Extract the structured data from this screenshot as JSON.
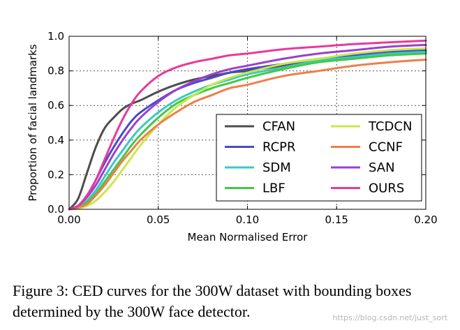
{
  "chart_data": {
    "type": "line",
    "title": "",
    "xlabel": "Mean Normalised Error",
    "ylabel": "Proportion of facial landmarks",
    "xlim": [
      0.0,
      0.2
    ],
    "ylim": [
      0.0,
      1.0
    ],
    "xticks": [
      "0.00",
      "0.05",
      "0.10",
      "0.15",
      "0.20"
    ],
    "yticks": [
      "0.0",
      "0.2",
      "0.4",
      "0.6",
      "0.8",
      "1.0"
    ],
    "xtick_values": [
      0.0,
      0.05,
      0.1,
      0.15,
      0.2
    ],
    "ytick_values": [
      0.0,
      0.2,
      0.4,
      0.6,
      0.8,
      1.0
    ],
    "grid": true,
    "legend_position": "lower-right",
    "x": [
      0.0,
      0.005,
      0.01,
      0.015,
      0.02,
      0.025,
      0.03,
      0.035,
      0.04,
      0.05,
      0.06,
      0.07,
      0.08,
      0.09,
      0.1,
      0.12,
      0.14,
      0.16,
      0.18,
      0.2
    ],
    "series": [
      {
        "name": "CFAN",
        "color": "#4d4d4d",
        "values": [
          0.0,
          0.06,
          0.21,
          0.36,
          0.47,
          0.53,
          0.58,
          0.61,
          0.63,
          0.68,
          0.72,
          0.75,
          0.77,
          0.79,
          0.8,
          0.83,
          0.86,
          0.88,
          0.9,
          0.91
        ]
      },
      {
        "name": "RCPR",
        "color": "#4a4ac8",
        "values": [
          0.0,
          0.02,
          0.08,
          0.17,
          0.27,
          0.36,
          0.44,
          0.51,
          0.56,
          0.63,
          0.69,
          0.73,
          0.76,
          0.79,
          0.81,
          0.84,
          0.87,
          0.89,
          0.91,
          0.92
        ]
      },
      {
        "name": "SDM",
        "color": "#3cc7c7",
        "values": [
          0.0,
          0.01,
          0.05,
          0.11,
          0.19,
          0.27,
          0.34,
          0.41,
          0.47,
          0.56,
          0.63,
          0.68,
          0.72,
          0.75,
          0.78,
          0.82,
          0.86,
          0.88,
          0.9,
          0.91
        ]
      },
      {
        "name": "LBF",
        "color": "#44c844",
        "values": [
          0.0,
          0.01,
          0.04,
          0.09,
          0.16,
          0.23,
          0.3,
          0.37,
          0.43,
          0.53,
          0.61,
          0.66,
          0.7,
          0.73,
          0.76,
          0.81,
          0.85,
          0.87,
          0.89,
          0.9
        ]
      },
      {
        "name": "TCDCN",
        "color": "#c8e84a",
        "values": [
          0.0,
          0.005,
          0.02,
          0.05,
          0.1,
          0.16,
          0.23,
          0.3,
          0.37,
          0.49,
          0.59,
          0.66,
          0.72,
          0.76,
          0.79,
          0.84,
          0.87,
          0.9,
          0.92,
          0.93
        ]
      },
      {
        "name": "CCNF",
        "color": "#f07e4a",
        "values": [
          0.0,
          0.01,
          0.03,
          0.08,
          0.14,
          0.21,
          0.28,
          0.34,
          0.4,
          0.49,
          0.56,
          0.62,
          0.66,
          0.7,
          0.72,
          0.77,
          0.8,
          0.83,
          0.85,
          0.865
        ]
      },
      {
        "name": "SAN",
        "color": "#9b3fd0",
        "values": [
          0.0,
          0.02,
          0.07,
          0.14,
          0.23,
          0.32,
          0.4,
          0.47,
          0.53,
          0.62,
          0.69,
          0.74,
          0.78,
          0.81,
          0.83,
          0.87,
          0.9,
          0.92,
          0.94,
          0.95
        ]
      },
      {
        "name": "OURS",
        "color": "#e8399a",
        "values": [
          0.0,
          0.02,
          0.08,
          0.17,
          0.29,
          0.41,
          0.52,
          0.61,
          0.68,
          0.77,
          0.82,
          0.85,
          0.87,
          0.89,
          0.9,
          0.925,
          0.94,
          0.955,
          0.965,
          0.975
        ]
      }
    ]
  },
  "caption": "Figure 3: CED curves for the 300W dataset with bounding boxes determined by the 300W face detector.",
  "watermark": "https://blog.csdn.net/just_sort"
}
